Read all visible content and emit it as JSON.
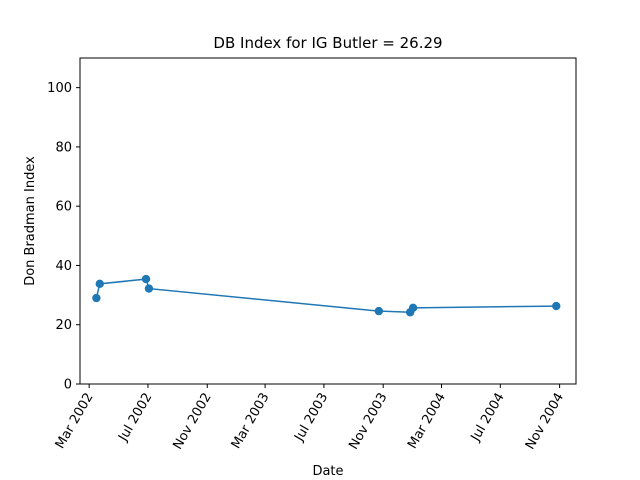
{
  "chart_data": {
    "type": "line",
    "title": "DB Index for IG Butler = 26.29",
    "xlabel": "Date",
    "ylabel": "Don Bradman Index",
    "ylim": [
      0,
      110
    ],
    "xlim": [
      "2002-02-10",
      "2004-12-05"
    ],
    "yticks": [
      0,
      20,
      40,
      60,
      80,
      100
    ],
    "xticks": [
      {
        "date": "2002-03-01",
        "label": "Mar 2002"
      },
      {
        "date": "2002-07-01",
        "label": "Jul 2002"
      },
      {
        "date": "2002-11-01",
        "label": "Nov 2002"
      },
      {
        "date": "2003-03-01",
        "label": "Mar 2003"
      },
      {
        "date": "2003-07-01",
        "label": "Jul 2003"
      },
      {
        "date": "2003-11-01",
        "label": "Nov 2003"
      },
      {
        "date": "2004-03-01",
        "label": "Mar 2004"
      },
      {
        "date": "2004-07-01",
        "label": "Jul 2004"
      },
      {
        "date": "2004-11-01",
        "label": "Nov 2004"
      }
    ],
    "grid": false,
    "legend": "none",
    "series": [
      {
        "color": "#1f77b4",
        "marker": "circle",
        "points": [
          {
            "x": "2002-03-16",
            "y": 29.0
          },
          {
            "x": "2002-03-23",
            "y": 33.8
          },
          {
            "x": "2002-06-27",
            "y": 35.4
          },
          {
            "x": "2002-07-03",
            "y": 32.2
          },
          {
            "x": "2003-10-23",
            "y": 24.6
          },
          {
            "x": "2003-12-27",
            "y": 24.2
          },
          {
            "x": "2004-01-02",
            "y": 25.7
          },
          {
            "x": "2004-10-25",
            "y": 26.29
          }
        ]
      }
    ]
  }
}
